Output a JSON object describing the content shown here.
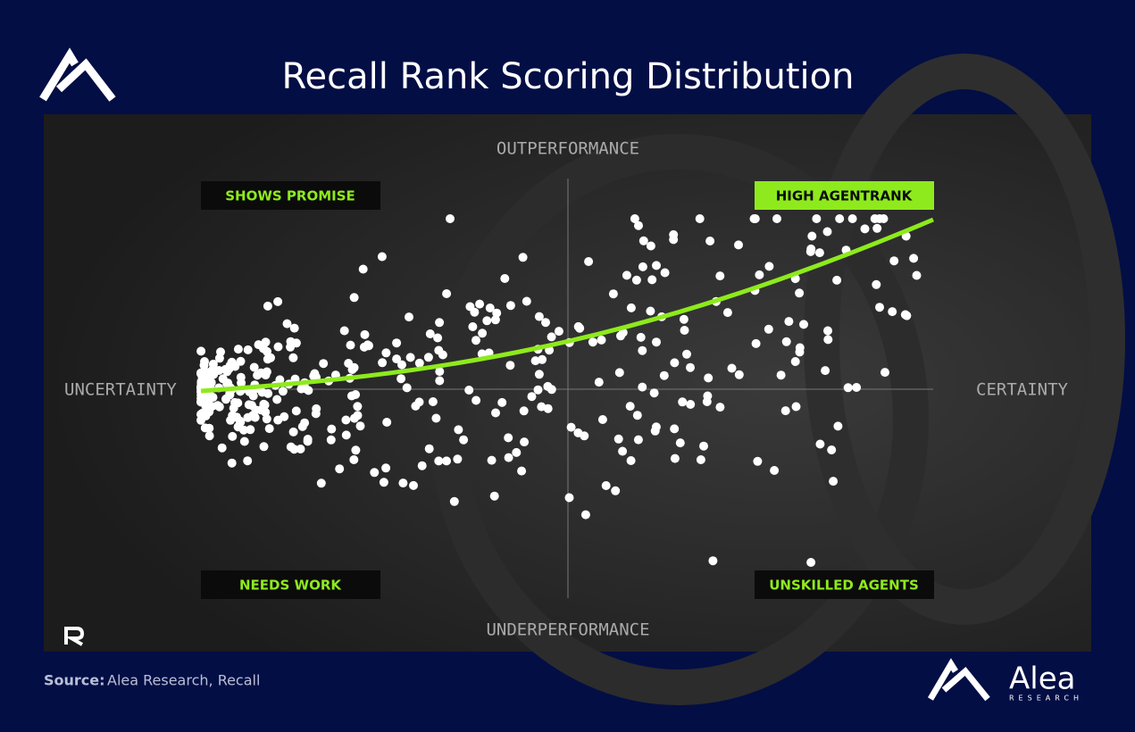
{
  "header": {
    "title": "Recall Rank Scoring Distribution"
  },
  "axes": {
    "top": "OUTPERFORMANCE",
    "bottom": "UNDERPERFORMANCE",
    "left": "UNCERTAINTY",
    "right": "CERTAINTY"
  },
  "quadrants": {
    "top_left": "SHOWS PROMISE",
    "top_right": "HIGH AGENTRANK",
    "bottom_left": "NEEDS WORK",
    "bottom_right": "UNSKILLED AGENTS"
  },
  "footer": {
    "source_label": "Source:",
    "source_text": "Alea Research, Recall",
    "brand": "Alea",
    "brand_sub": "RESEARCH"
  }
}
